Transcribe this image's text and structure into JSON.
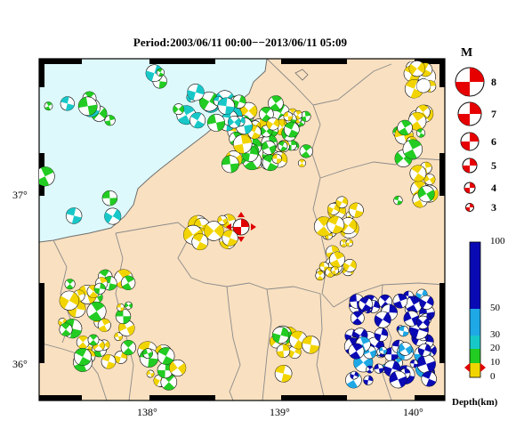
{
  "title": "Period:2003/06/11 00:00−−2013/06/11 05:09",
  "axes": {
    "x_ticks": [
      "138°",
      "139°",
      "140°"
    ],
    "y_ticks": [
      "37°",
      "36°"
    ]
  },
  "colors": {
    "land": "#f9e0c0",
    "sea": "#ddf9fb",
    "border": "#8a8a8a"
  },
  "legend": {
    "magnitude_title": "M",
    "magnitudes": [
      "8",
      "7",
      "6",
      "5",
      "4",
      "3"
    ],
    "depth_title": "Depth(km)",
    "depth_labels": [
      "100",
      "50",
      "30",
      "20",
      "10",
      "0"
    ],
    "depth_colors": [
      "#0a0ab4",
      "#0a0ab4",
      "#1fa8e6",
      "#18c8c8",
      "#22cc22",
      "#f2d400"
    ]
  },
  "marker": {
    "type": "red mechanism with triangles"
  }
}
